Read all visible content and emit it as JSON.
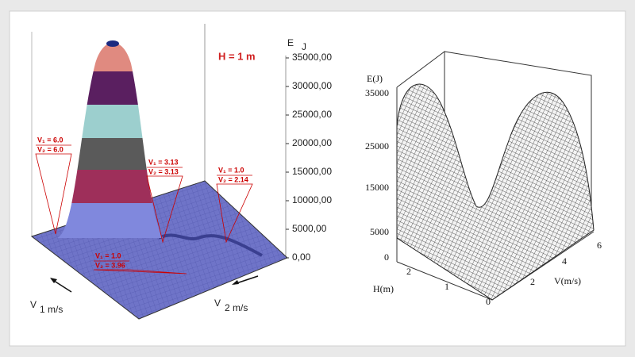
{
  "left_plot": {
    "z_axis": {
      "label": "E",
      "unit": "J",
      "ticks": [
        "35000,00",
        "30000,00",
        "25000,00",
        "20000,00",
        "15000,00",
        "10000,00",
        "5000,00",
        "0,00"
      ]
    },
    "parameter": "H = 1 m",
    "annotations": [
      {
        "line1": "V₁ = 6.0",
        "line2": "V₂ = 6.0"
      },
      {
        "line1": "V₁ = 3.13",
        "line2": "V₂ = 3.13"
      },
      {
        "line1": "V₁ = 1.0",
        "line2": "V₂ = 2.14"
      },
      {
        "line1": "V₁ = 1.0",
        "line2": "V₂ = 3.96"
      }
    ],
    "axis_v1": {
      "symbol": "V",
      "subscript": "1 m/s"
    },
    "axis_v2": {
      "symbol": "V",
      "subscript": "2 m/s"
    }
  },
  "right_plot": {
    "z_axis": {
      "label": "E(J)",
      "ticks": [
        "35000",
        "25000",
        "15000",
        "5000",
        "0"
      ]
    },
    "h_axis": {
      "label": "H(m)",
      "ticks": [
        "2",
        "1",
        "0"
      ]
    },
    "v_axis": {
      "label": "V(m/s)",
      "ticks": [
        "2",
        "4",
        "6"
      ]
    }
  }
}
